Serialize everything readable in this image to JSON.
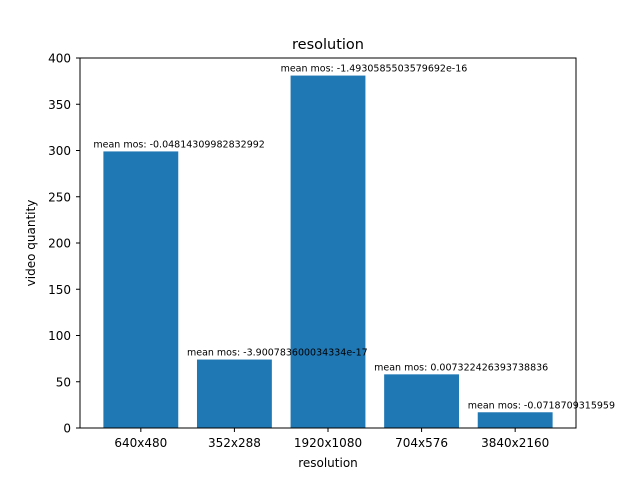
{
  "chart_data": {
    "type": "bar",
    "title": "resolution",
    "xlabel": "resolution",
    "ylabel": "video quantity",
    "categories": [
      "640x480",
      "352x288",
      "1920x1080",
      "704x576",
      "3840x2160"
    ],
    "values": [
      299,
      74,
      381,
      58,
      17
    ],
    "bar_labels": [
      "mean mos: -0.04814309982832992",
      "mean mos: -3.900783600034334e-17",
      "mean mos: -1.4930585503579692e-16",
      "mean mos: 0.007322426393738836",
      "mean mos: -0.0718709315959"
    ],
    "yticks": [
      0,
      50,
      100,
      150,
      200,
      250,
      300,
      350,
      400
    ],
    "ylim": [
      0,
      400
    ],
    "grid": false,
    "bar_color": "#1f77b4"
  }
}
